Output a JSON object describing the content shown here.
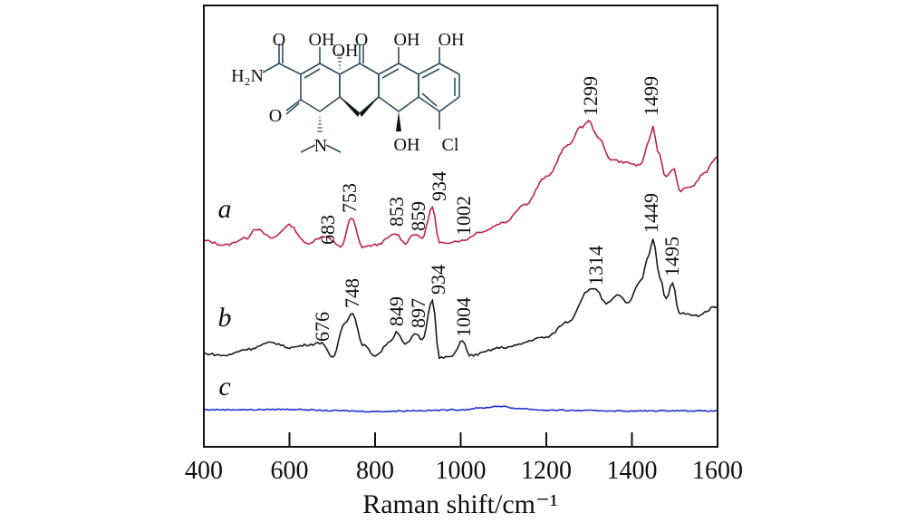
{
  "chart_data": {
    "type": "line",
    "title": "",
    "xlabel": "Raman shift/cm⁻¹",
    "ylabel": "",
    "xlim": [
      400,
      1600
    ],
    "ylim": [
      0,
      100
    ],
    "xticks": [
      "400",
      "600",
      "800",
      "1000",
      "1200",
      "1400",
      "1600"
    ],
    "grid": false,
    "series": [
      {
        "name": "a",
        "color": "#c0234a",
        "x": [
          400,
          450,
          500,
          520,
          560,
          600,
          640,
          683,
          720,
          745,
          770,
          800,
          850,
          870,
          890,
          910,
          934,
          950,
          1002,
          1050,
          1100,
          1150,
          1200,
          1250,
          1280,
          1299,
          1320,
          1350,
          1380,
          1420,
          1440,
          1449,
          1460,
          1480,
          1499,
          1510,
          1540,
          1570,
          1600
        ],
        "y": [
          46.7,
          45.7,
          47.3,
          49.4,
          47.3,
          50.2,
          46.1,
          47.7,
          45.3,
          51.8,
          45.3,
          45.7,
          48.2,
          46.1,
          48.2,
          47.3,
          54.3,
          46.1,
          46.7,
          48.8,
          50.8,
          54.9,
          61.1,
          68.2,
          72.3,
          73.8,
          70.3,
          65.2,
          64.5,
          63.7,
          69.3,
          72.7,
          67.2,
          61.1,
          63.1,
          58.0,
          59.0,
          62.1,
          65.8
        ],
        "peak_labels": [
          "683",
          "753",
          "853",
          "859",
          "934",
          "1002",
          "1299",
          "1499"
        ]
      },
      {
        "name": "b",
        "color": "#1a1a1a",
        "x": [
          400,
          450,
          500,
          560,
          600,
          650,
          676,
          700,
          730,
          748,
          770,
          800,
          840,
          849,
          870,
          897,
          910,
          934,
          950,
          980,
          1004,
          1020,
          1100,
          1200,
          1250,
          1300,
          1314,
          1340,
          1370,
          1390,
          1420,
          1440,
          1449,
          1465,
          1480,
          1495,
          1510,
          1550,
          1600
        ],
        "y": [
          21.1,
          20.7,
          22.1,
          23.6,
          22.5,
          23.2,
          23.6,
          20.1,
          28.3,
          30.3,
          23.2,
          20.7,
          24.2,
          26.2,
          23.2,
          25.6,
          24.2,
          33.4,
          20.1,
          20.5,
          24.2,
          20.7,
          22.5,
          24.8,
          28.3,
          35.5,
          35.9,
          32.4,
          34.4,
          32.4,
          37.5,
          43.6,
          47.3,
          38.5,
          33.4,
          37.1,
          30.3,
          29.7,
          31.8
        ],
        "peak_labels": [
          "676",
          "748",
          "849",
          "897",
          "934",
          "1004",
          "1314",
          "1449",
          "1495"
        ]
      },
      {
        "name": "c",
        "color": "#1f2fd0",
        "x": [
          400,
          500,
          600,
          700,
          800,
          900,
          1000,
          1050,
          1090,
          1130,
          1200,
          1300,
          1400,
          1500,
          1600
        ],
        "y": [
          8.4,
          8.4,
          8.5,
          8.2,
          8.0,
          8.2,
          8.4,
          8.8,
          9.2,
          8.7,
          8.3,
          8.2,
          8.1,
          8.2,
          8.1
        ],
        "peak_labels": []
      }
    ],
    "inset_structure": {
      "atom_labels": [
        "O",
        "H₂N",
        "O",
        "N",
        "OH",
        "OH",
        "O",
        "OH",
        "OH",
        "OH",
        "Cl"
      ],
      "bond_color": "#2f4f5f"
    }
  }
}
